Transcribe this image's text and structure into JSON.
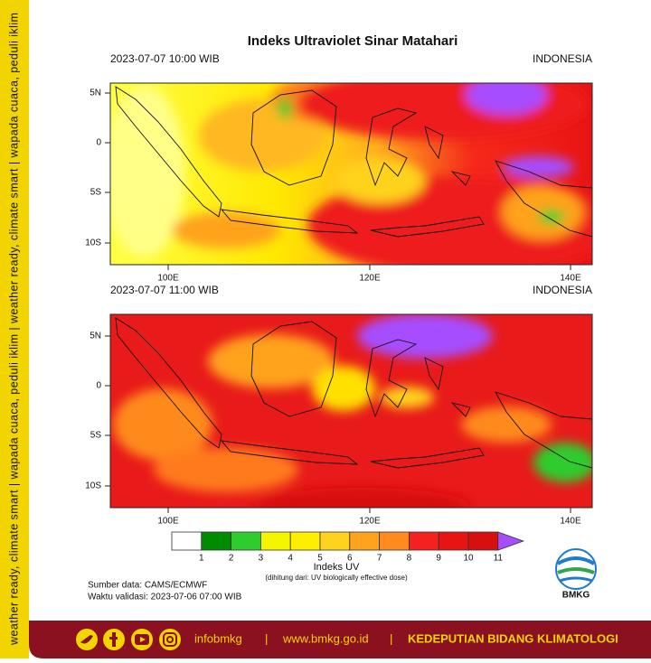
{
  "sidebar": {
    "text": "weather ready, climate smart | wapada cuaca, peduli iklim | weather ready, climate smart | wapada cuaca, peduli iklim"
  },
  "header": {
    "title": "Indeks Ultraviolet Sinar Matahari"
  },
  "panels": [
    {
      "time": "2023-07-07  10:00 WIB",
      "region": "INDONESIA",
      "lat_labels": [
        "5N",
        "0",
        "5S",
        "10S"
      ],
      "lon_labels": [
        "100E",
        "120E",
        "140E"
      ]
    },
    {
      "time": "2023-07-07  11:00 WIB",
      "region": "INDONESIA",
      "lat_labels": [
        "5N",
        "0",
        "5S",
        "10S"
      ],
      "lon_labels": [
        "100E",
        "120E",
        "140E"
      ]
    }
  ],
  "legend": {
    "title": "Indeks UV",
    "subtitle": "(dihitung dari: UV biologically effective dose)",
    "labels": [
      1,
      2,
      3,
      4,
      5,
      6,
      7,
      8,
      9,
      10,
      11
    ],
    "colors": [
      "#ffffff",
      "#008c00",
      "#2ecc2e",
      "#f5f500",
      "#ffee00",
      "#ffd21e",
      "#ffa21e",
      "#ff8a1e",
      "#f52020",
      "#e81414",
      "#d80f0f",
      "#a64dff"
    ]
  },
  "notes": [
    "Sumber data: CAMS/ECMWF",
    "Waktu validasi: 2023-07-06 07:00 WIB"
  ],
  "logo": {
    "text": "BMKG"
  },
  "footer": {
    "handle": "infobmkg",
    "separator": "|",
    "website": "www.bmkg.go.id",
    "department": "KEDEPUTIAN BIDANG KLIMATOLOGI"
  }
}
